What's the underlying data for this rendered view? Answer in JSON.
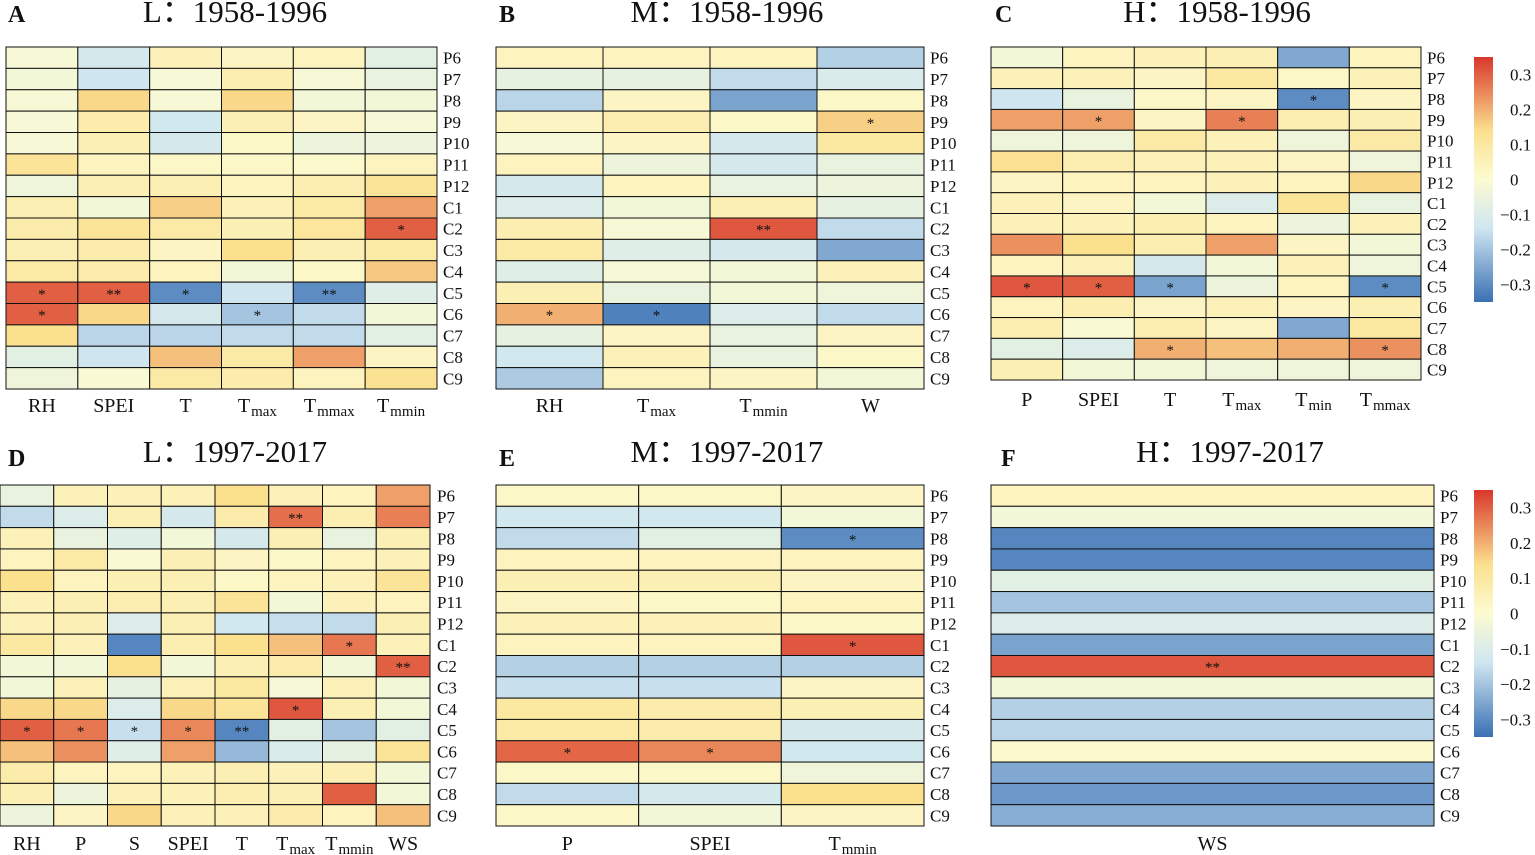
{
  "colors": {
    "neg_strong": "#3a70b4",
    "neg_light": "#cfe6f1",
    "neutral": "#fcfbd1",
    "pos_light": "#fbe08e",
    "pos_strong": "#d9372b",
    "grid": "#111111"
  },
  "colorbars": [
    {
      "ticks": [
        {
          "value": 0.3,
          "label": "0.3"
        },
        {
          "value": 0.2,
          "label": "0.2"
        },
        {
          "value": 0.1,
          "label": "0.1"
        },
        {
          "value": 0,
          "label": "0"
        },
        {
          "value": -0.1,
          "label": "−0.1"
        },
        {
          "value": -0.2,
          "label": "−0.2"
        },
        {
          "value": -0.3,
          "label": "−0.3"
        }
      ]
    },
    {
      "ticks": [
        {
          "value": 0.3,
          "label": "0.3"
        },
        {
          "value": 0.2,
          "label": "0.2"
        },
        {
          "value": 0.1,
          "label": "0.1"
        },
        {
          "value": 0,
          "label": "0"
        },
        {
          "value": -0.1,
          "label": "−0.1"
        },
        {
          "value": -0.2,
          "label": "−0.2"
        },
        {
          "value": -0.3,
          "label": "−0.3"
        }
      ]
    }
  ],
  "chart_data": [
    {
      "type": "heatmap",
      "panel": "A",
      "title": "L：1958-1996",
      "rows": [
        "P6",
        "P7",
        "P8",
        "P9",
        "P10",
        "P11",
        "P12",
        "C1",
        "C2",
        "C3",
        "C4",
        "C5",
        "C6",
        "C7",
        "C8",
        "C9"
      ],
      "columns": [
        {
          "base": "RH",
          "sub": ""
        },
        {
          "base": "SPEI",
          "sub": ""
        },
        {
          "base": "T",
          "sub": ""
        },
        {
          "base": "T",
          "sub": "max"
        },
        {
          "base": "T",
          "sub": "mmax"
        },
        {
          "base": "T",
          "sub": "mmin"
        }
      ],
      "values": [
        [
          -0.02,
          -0.12,
          0.05,
          0.03,
          0.04,
          -0.08
        ],
        [
          -0.03,
          -0.14,
          -0.02,
          0.07,
          -0.02,
          -0.06
        ],
        [
          -0.02,
          0.15,
          -0.02,
          0.15,
          -0.03,
          -0.03
        ],
        [
          -0.02,
          0.08,
          -0.13,
          0.06,
          0.03,
          -0.02
        ],
        [
          -0.02,
          0.06,
          -0.12,
          0.02,
          -0.05,
          -0.05
        ],
        [
          0.12,
          0.04,
          0.02,
          0.02,
          0.01,
          0.04
        ],
        [
          -0.04,
          0.06,
          0.06,
          0.04,
          0.07,
          0.12
        ],
        [
          0.06,
          -0.03,
          0.16,
          0.05,
          0.09,
          0.22
        ],
        [
          0.08,
          0.12,
          0.09,
          0.06,
          0.11,
          0.3
        ],
        [
          0.06,
          0.08,
          0.03,
          0.14,
          0.06,
          0.09
        ],
        [
          0.09,
          0.08,
          0.04,
          -0.03,
          0.02,
          0.17
        ],
        [
          0.3,
          0.3,
          -0.3,
          -0.14,
          -0.3,
          -0.09
        ],
        [
          0.3,
          0.15,
          -0.12,
          -0.2,
          -0.16,
          -0.03
        ],
        [
          0.14,
          -0.17,
          -0.17,
          -0.16,
          -0.16,
          -0.08
        ],
        [
          -0.08,
          -0.14,
          0.18,
          0.09,
          0.22,
          0.03
        ],
        [
          -0.04,
          -0.01,
          0.09,
          0.08,
          0.04,
          0.13
        ]
      ],
      "significance": {
        "11,0": "*",
        "11,1": "**",
        "11,2": "*",
        "11,4": "**",
        "12,0": "*",
        "12,3": "*",
        "8,5": "*"
      },
      "vmin": -0.35,
      "vmax": 0.35
    },
    {
      "type": "heatmap",
      "panel": "B",
      "title": "M：1958-1996",
      "rows": [
        "P6",
        "P7",
        "P8",
        "P9",
        "P10",
        "P11",
        "P12",
        "C1",
        "C2",
        "C3",
        "C4",
        "C5",
        "C6",
        "C7",
        "C8",
        "C9"
      ],
      "columns": [
        {
          "base": "RH",
          "sub": ""
        },
        {
          "base": "T",
          "sub": "max"
        },
        {
          "base": "T",
          "sub": "mmin"
        },
        {
          "base": "W",
          "sub": ""
        }
      ],
      "values": [
        [
          0.04,
          0.04,
          0.04,
          -0.18
        ],
        [
          -0.07,
          -0.07,
          -0.16,
          -0.11
        ],
        [
          -0.17,
          0.03,
          -0.26,
          0.02
        ],
        [
          0.03,
          0.07,
          0.02,
          0.16
        ],
        [
          -0.02,
          0.03,
          -0.12,
          0.1
        ],
        [
          0.04,
          -0.05,
          -0.12,
          -0.06
        ],
        [
          -0.12,
          0.04,
          -0.06,
          -0.05
        ],
        [
          -0.1,
          -0.03,
          0.06,
          -0.07
        ],
        [
          0.07,
          -0.02,
          0.31,
          -0.16
        ],
        [
          0.09,
          -0.09,
          -0.12,
          -0.25
        ],
        [
          -0.09,
          -0.02,
          -0.03,
          0.05
        ],
        [
          0.06,
          -0.06,
          -0.03,
          -0.04
        ],
        [
          0.2,
          -0.32,
          -0.1,
          -0.16
        ],
        [
          -0.07,
          0.03,
          -0.06,
          0.03
        ],
        [
          -0.13,
          0.05,
          -0.06,
          0.02
        ],
        [
          -0.19,
          0.04,
          0.03,
          -0.03
        ]
      ],
      "significance": {
        "3,3": "*",
        "8,2": "**",
        "12,0": "*",
        "12,1": "*"
      },
      "vmin": -0.35,
      "vmax": 0.35
    },
    {
      "type": "heatmap",
      "panel": "C",
      "title": "H：1958-1996",
      "rows": [
        "P6",
        "P7",
        "P8",
        "P9",
        "P10",
        "P11",
        "P12",
        "C1",
        "C2",
        "C3",
        "C4",
        "C5",
        "C6",
        "C7",
        "C8",
        "C9"
      ],
      "columns": [
        {
          "base": "P",
          "sub": ""
        },
        {
          "base": "SPEI",
          "sub": ""
        },
        {
          "base": "T",
          "sub": ""
        },
        {
          "base": "T",
          "sub": "max"
        },
        {
          "base": "T",
          "sub": "min"
        },
        {
          "base": "T",
          "sub": "mmax"
        }
      ],
      "values": [
        [
          -0.03,
          0.04,
          0.05,
          0.06,
          -0.25,
          0.04
        ],
        [
          0.05,
          0.05,
          0.03,
          0.1,
          0.02,
          0.05
        ],
        [
          -0.14,
          -0.06,
          0.02,
          0.03,
          -0.3,
          0.03
        ],
        [
          0.22,
          0.22,
          0.03,
          0.26,
          0.07,
          0.06
        ],
        [
          -0.04,
          -0.04,
          0.09,
          0.05,
          -0.04,
          0.09
        ],
        [
          0.13,
          0.07,
          0.05,
          0.05,
          0.03,
          -0.04
        ],
        [
          0.03,
          0.04,
          0.04,
          0.05,
          0.04,
          0.15
        ],
        [
          0.05,
          0.03,
          -0.03,
          -0.1,
          0.12,
          -0.06
        ],
        [
          0.05,
          0.05,
          0.07,
          0.04,
          -0.05,
          0.05
        ],
        [
          0.24,
          0.14,
          0.07,
          0.22,
          0.03,
          -0.03
        ],
        [
          0.04,
          0.05,
          -0.12,
          -0.03,
          0.05,
          -0.04
        ],
        [
          0.31,
          0.3,
          -0.26,
          -0.05,
          0.04,
          -0.3
        ],
        [
          0.04,
          0.07,
          0.03,
          0.05,
          0.03,
          0.06
        ],
        [
          0.07,
          -0.01,
          0.07,
          0.03,
          -0.25,
          0.1
        ],
        [
          -0.08,
          -0.1,
          0.2,
          0.18,
          0.2,
          0.24
        ],
        [
          0.06,
          -0.03,
          -0.03,
          -0.04,
          -0.04,
          -0.04
        ]
      ],
      "significance": {
        "2,4": "*",
        "3,1": "*",
        "3,3": "*",
        "11,0": "*",
        "11,1": "*",
        "11,2": "*",
        "11,5": "*",
        "14,2": "*",
        "14,5": "*"
      },
      "vmin": -0.35,
      "vmax": 0.35
    },
    {
      "type": "heatmap",
      "panel": "D",
      "title": "L：1997-2017",
      "rows": [
        "P6",
        "P7",
        "P8",
        "P9",
        "P10",
        "P11",
        "P12",
        "C1",
        "C2",
        "C3",
        "C4",
        "C5",
        "C6",
        "C7",
        "C8",
        "C9"
      ],
      "columns": [
        {
          "base": "RH",
          "sub": ""
        },
        {
          "base": "P",
          "sub": ""
        },
        {
          "base": "S",
          "sub": ""
        },
        {
          "base": "SPEI",
          "sub": ""
        },
        {
          "base": "T",
          "sub": ""
        },
        {
          "base": "T",
          "sub": "max"
        },
        {
          "base": "T",
          "sub": "mmin"
        },
        {
          "base": "WS",
          "sub": ""
        }
      ],
      "values": [
        [
          -0.06,
          0.05,
          0.05,
          0.05,
          0.14,
          0.05,
          0.04,
          0.22
        ],
        [
          -0.16,
          -0.1,
          0.06,
          -0.12,
          0.08,
          0.28,
          0.07,
          0.26
        ],
        [
          0.05,
          -0.06,
          -0.09,
          -0.03,
          -0.12,
          0.06,
          -0.06,
          0.06
        ],
        [
          0.04,
          0.09,
          -0.01,
          0.06,
          0.03,
          0.02,
          0.04,
          0.05
        ],
        [
          0.14,
          0.04,
          0.06,
          0.06,
          0.02,
          0.04,
          0.05,
          0.12
        ],
        [
          0.05,
          0.06,
          0.07,
          0.06,
          0.12,
          -0.03,
          0.05,
          0.04
        ],
        [
          0.05,
          0.06,
          -0.1,
          0.06,
          -0.13,
          -0.15,
          -0.16,
          0.06
        ],
        [
          0.1,
          0.05,
          -0.31,
          0.07,
          0.14,
          0.18,
          0.27,
          0.05
        ],
        [
          -0.03,
          -0.03,
          0.14,
          -0.03,
          0.06,
          0.08,
          -0.03,
          0.3
        ],
        [
          -0.03,
          0.05,
          -0.07,
          0.05,
          0.1,
          -0.02,
          0.05,
          -0.03
        ],
        [
          0.15,
          0.15,
          -0.1,
          0.15,
          0.12,
          0.31,
          0.06,
          -0.03
        ],
        [
          0.3,
          0.27,
          -0.15,
          0.25,
          -0.31,
          -0.08,
          -0.2,
          -0.08
        ],
        [
          0.18,
          0.24,
          -0.09,
          0.22,
          -0.22,
          -0.11,
          -0.07,
          0.12
        ],
        [
          0.08,
          0.04,
          0.04,
          0.05,
          0.06,
          0.05,
          0.06,
          -0.03
        ],
        [
          0.06,
          -0.05,
          0.05,
          0.05,
          0.07,
          0.06,
          0.3,
          -0.03
        ],
        [
          -0.05,
          0.03,
          0.15,
          0.05,
          0.05,
          0.08,
          0.04,
          0.18
        ]
      ],
      "significance": {
        "1,5": "**",
        "7,6": "*",
        "8,7": "**",
        "10,5": "*",
        "11,0": "*",
        "11,1": "*",
        "11,2": "*",
        "11,3": "*",
        "11,4": "**"
      },
      "vmin": -0.35,
      "vmax": 0.35
    },
    {
      "type": "heatmap",
      "panel": "E",
      "title": "M：1997-2017",
      "rows": [
        "P6",
        "P7",
        "P8",
        "P9",
        "P10",
        "P11",
        "P12",
        "C1",
        "C2",
        "C3",
        "C4",
        "C5",
        "C6",
        "C7",
        "C8",
        "C9"
      ],
      "columns": [
        {
          "base": "P",
          "sub": ""
        },
        {
          "base": "SPEI",
          "sub": ""
        },
        {
          "base": "T",
          "sub": "mmin"
        }
      ],
      "values": [
        [
          0.02,
          0.02,
          0.03
        ],
        [
          -0.13,
          -0.13,
          -0.03
        ],
        [
          -0.16,
          -0.08,
          -0.3
        ],
        [
          0.04,
          0.04,
          0.04
        ],
        [
          0.06,
          0.06,
          0.03
        ],
        [
          0.03,
          0.02,
          0.04
        ],
        [
          0.05,
          0.05,
          0.02
        ],
        [
          0.04,
          0.04,
          0.31
        ],
        [
          -0.18,
          -0.18,
          -0.18
        ],
        [
          -0.15,
          -0.15,
          0.03
        ],
        [
          0.1,
          0.08,
          0.06
        ],
        [
          0.09,
          0.08,
          -0.12
        ],
        [
          0.29,
          0.25,
          -0.13
        ],
        [
          0.02,
          0.02,
          -0.04
        ],
        [
          -0.16,
          -0.12,
          0.14
        ],
        [
          0.02,
          -0.03,
          0.03
        ]
      ],
      "significance": {
        "2,2": "*",
        "7,2": "*",
        "12,0": "*",
        "12,1": "*"
      },
      "vmin": -0.35,
      "vmax": 0.35
    },
    {
      "type": "heatmap",
      "panel": "F",
      "title": "H：1997-2017",
      "rows": [
        "P6",
        "P7",
        "P8",
        "P9",
        "P10",
        "P11",
        "P12",
        "C1",
        "C2",
        "C3",
        "C4",
        "C5",
        "C6",
        "C7",
        "C8",
        "C9"
      ],
      "columns": [
        {
          "base": "WS",
          "sub": ""
        }
      ],
      "values": [
        [
          0.04
        ],
        [
          -0.03
        ],
        [
          -0.31
        ],
        [
          -0.31
        ],
        [
          -0.08
        ],
        [
          -0.2
        ],
        [
          -0.1
        ],
        [
          -0.26
        ],
        [
          0.31
        ],
        [
          -0.03
        ],
        [
          -0.18
        ],
        [
          -0.17
        ],
        [
          0.01
        ],
        [
          -0.25
        ],
        [
          -0.28
        ],
        [
          -0.24
        ]
      ],
      "significance": {
        "8,0": "**"
      },
      "vmin": -0.35,
      "vmax": 0.35
    }
  ]
}
